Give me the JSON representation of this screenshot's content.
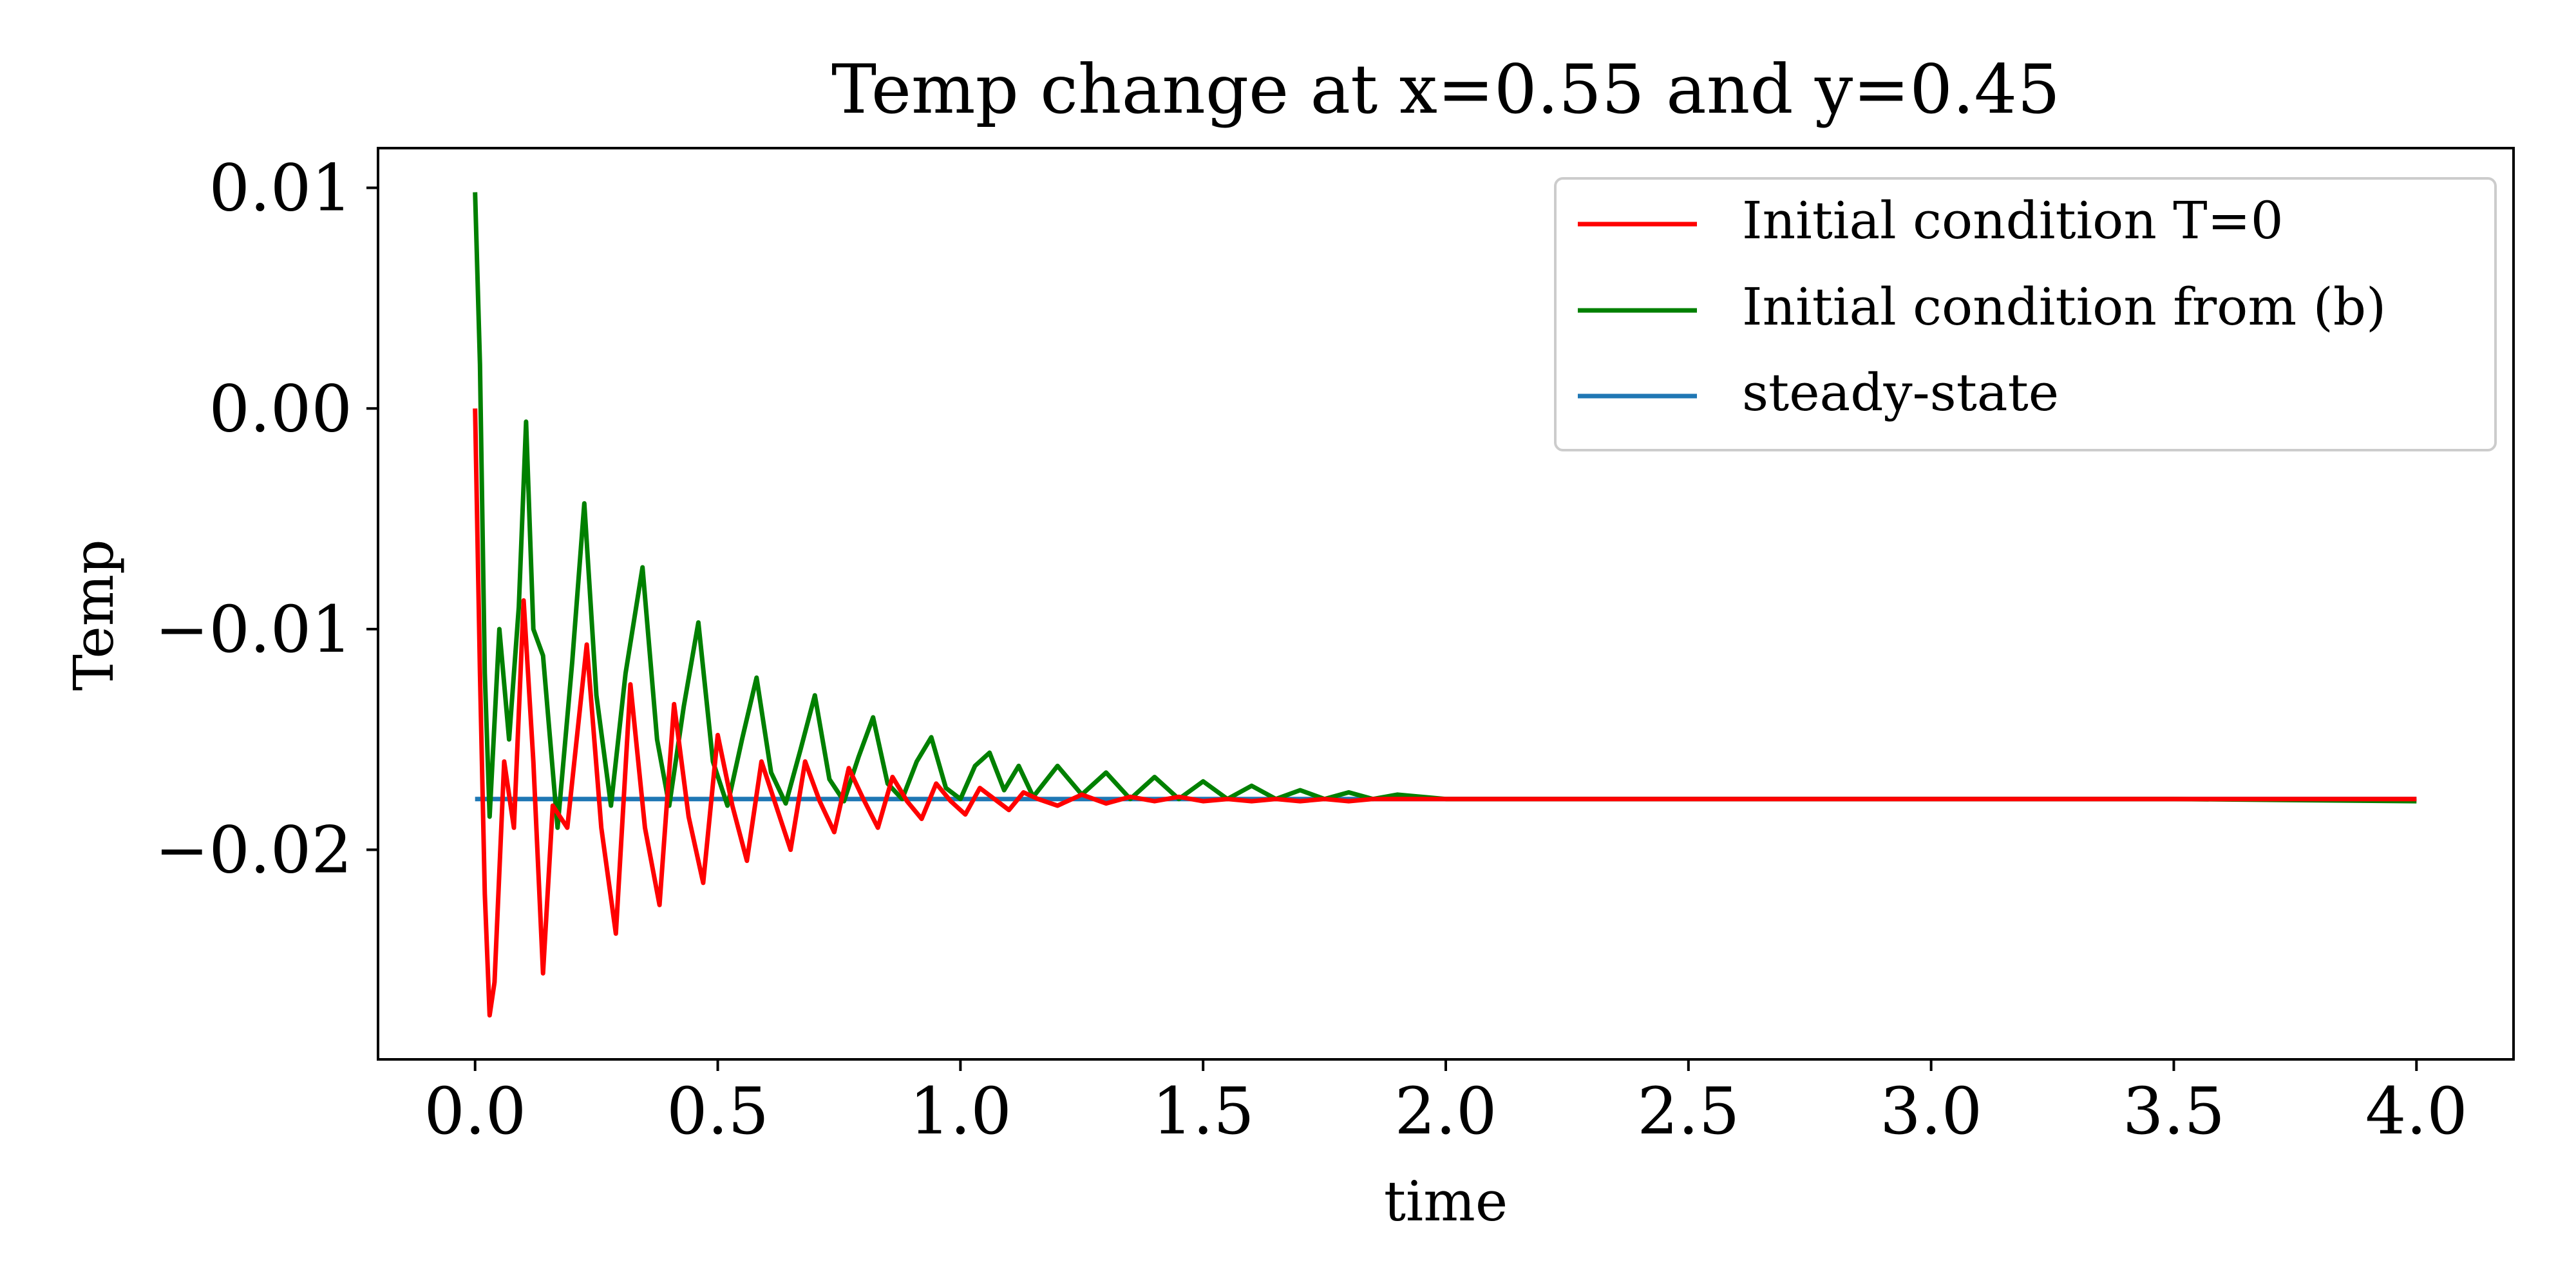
{
  "chart_data": {
    "type": "line",
    "title": "Temp change at x=0.55 and y=0.45",
    "xlabel": "time",
    "ylabel": "Temp",
    "xlim": [
      -0.2,
      4.2
    ],
    "ylim": [
      -0.0295,
      0.0118
    ],
    "xticks": [
      0.0,
      0.5,
      1.0,
      1.5,
      2.0,
      2.5,
      3.0,
      3.5,
      4.0
    ],
    "xtick_labels": [
      "0.0",
      "0.5",
      "1.0",
      "1.5",
      "2.0",
      "2.5",
      "3.0",
      "3.5",
      "4.0"
    ],
    "yticks": [
      0.01,
      0.0,
      -0.01,
      -0.02
    ],
    "ytick_labels": [
      "0.01",
      "0.00",
      "−0.01",
      "−0.02"
    ],
    "grid": false,
    "legend_position": "upper right",
    "series": [
      {
        "name": "Initial condition T=0",
        "color": "#ff0000",
        "x": [
          0.0,
          0.01,
          0.02,
          0.03,
          0.04,
          0.06,
          0.08,
          0.1,
          0.12,
          0.14,
          0.16,
          0.19,
          0.23,
          0.26,
          0.29,
          0.32,
          0.35,
          0.38,
          0.41,
          0.44,
          0.47,
          0.5,
          0.53,
          0.56,
          0.59,
          0.62,
          0.65,
          0.68,
          0.71,
          0.74,
          0.77,
          0.8,
          0.83,
          0.86,
          0.89,
          0.92,
          0.95,
          0.98,
          1.01,
          1.04,
          1.07,
          1.1,
          1.13,
          1.16,
          1.2,
          1.25,
          1.3,
          1.35,
          1.4,
          1.45,
          1.5,
          1.55,
          1.6,
          1.65,
          1.7,
          1.75,
          1.8,
          1.85,
          1.9,
          2.0,
          2.2,
          2.5,
          3.0,
          3.5,
          4.0
        ],
        "y": [
          0.0,
          -0.012,
          -0.022,
          -0.0275,
          -0.026,
          -0.016,
          -0.019,
          -0.0087,
          -0.016,
          -0.0256,
          -0.018,
          -0.019,
          -0.0107,
          -0.019,
          -0.0238,
          -0.0125,
          -0.019,
          -0.0225,
          -0.0134,
          -0.0185,
          -0.0215,
          -0.0148,
          -0.018,
          -0.0205,
          -0.016,
          -0.018,
          -0.02,
          -0.016,
          -0.0178,
          -0.0192,
          -0.0163,
          -0.0177,
          -0.019,
          -0.0167,
          -0.0178,
          -0.0186,
          -0.017,
          -0.0178,
          -0.0184,
          -0.0172,
          -0.0177,
          -0.0182,
          -0.0174,
          -0.0177,
          -0.018,
          -0.0175,
          -0.0179,
          -0.0176,
          -0.0178,
          -0.0176,
          -0.0178,
          -0.0177,
          -0.0178,
          -0.0177,
          -0.0178,
          -0.0177,
          -0.0178,
          -0.0177,
          -0.0177,
          -0.0177,
          -0.0177,
          -0.0177,
          -0.0177,
          -0.0177,
          -0.0177
        ]
      },
      {
        "name": "Initial condition from (b)",
        "color": "#008000",
        "x": [
          0.0,
          0.01,
          0.02,
          0.03,
          0.05,
          0.07,
          0.09,
          0.105,
          0.12,
          0.14,
          0.17,
          0.2,
          0.225,
          0.25,
          0.28,
          0.31,
          0.345,
          0.375,
          0.4,
          0.43,
          0.46,
          0.49,
          0.52,
          0.55,
          0.58,
          0.61,
          0.64,
          0.67,
          0.7,
          0.73,
          0.76,
          0.79,
          0.82,
          0.85,
          0.88,
          0.91,
          0.94,
          0.97,
          1.0,
          1.03,
          1.06,
          1.09,
          1.12,
          1.15,
          1.2,
          1.25,
          1.3,
          1.35,
          1.4,
          1.45,
          1.5,
          1.55,
          1.6,
          1.65,
          1.7,
          1.75,
          1.8,
          1.85,
          1.9,
          2.0,
          2.2,
          2.5,
          3.0,
          3.5,
          4.0
        ],
        "y": [
          0.0098,
          0.002,
          -0.012,
          -0.0185,
          -0.01,
          -0.015,
          -0.009,
          -0.0006,
          -0.01,
          -0.0112,
          -0.019,
          -0.0115,
          -0.0043,
          -0.013,
          -0.018,
          -0.012,
          -0.0072,
          -0.015,
          -0.018,
          -0.0135,
          -0.0097,
          -0.016,
          -0.018,
          -0.015,
          -0.0122,
          -0.0165,
          -0.0179,
          -0.0155,
          -0.013,
          -0.0168,
          -0.0178,
          -0.0158,
          -0.014,
          -0.017,
          -0.0177,
          -0.016,
          -0.0149,
          -0.0172,
          -0.0177,
          -0.0162,
          -0.0156,
          -0.0173,
          -0.0162,
          -0.0176,
          -0.0162,
          -0.0175,
          -0.0165,
          -0.0177,
          -0.0167,
          -0.0177,
          -0.0169,
          -0.0177,
          -0.0171,
          -0.0177,
          -0.0173,
          -0.0177,
          -0.0174,
          -0.0177,
          -0.0175,
          -0.0177,
          -0.0177,
          -0.0177,
          -0.0177,
          -0.0177,
          -0.0178
        ]
      },
      {
        "name": "steady-state",
        "color": "#1f77b4",
        "x": [
          0.0,
          4.0
        ],
        "y": [
          -0.0177,
          -0.0177
        ]
      }
    ]
  }
}
